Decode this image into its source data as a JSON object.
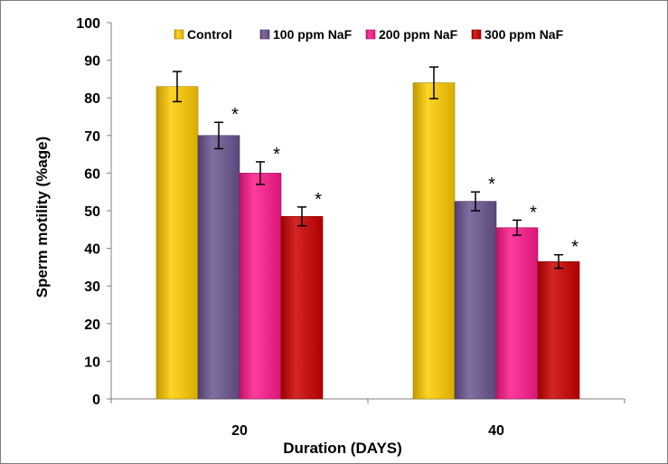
{
  "chart_data": {
    "type": "bar",
    "title": "",
    "xlabel": "Duration (DAYS)",
    "ylabel": "Sperm motility (%age)",
    "ylim": [
      0,
      100
    ],
    "yticks": [
      "0",
      "10",
      "20",
      "30",
      "40",
      "50",
      "60",
      "70",
      "80",
      "90",
      "100"
    ],
    "categories": [
      "20",
      "40"
    ],
    "grid": false,
    "legend_position": "top",
    "series": [
      {
        "name": "Control",
        "color": "#ffcc00",
        "values": [
          83,
          84
        ],
        "errors": [
          4,
          4.2
        ],
        "significance": [
          "",
          ""
        ]
      },
      {
        "name": "100 ppm NaF",
        "color": "#6b5591",
        "values": [
          70,
          52.5
        ],
        "errors": [
          3.5,
          2.5
        ],
        "significance": [
          "*",
          "*"
        ]
      },
      {
        "name": "200 ppm NaF",
        "color": "#ff1a8c",
        "values": [
          60,
          45.5
        ],
        "errors": [
          3,
          2
        ],
        "significance": [
          "*",
          "*"
        ]
      },
      {
        "name": "300 ppm NaF",
        "color": "#cc0000",
        "values": [
          48.5,
          36.5
        ],
        "errors": [
          2.5,
          1.8
        ],
        "significance": [
          "*",
          "*"
        ]
      }
    ]
  }
}
